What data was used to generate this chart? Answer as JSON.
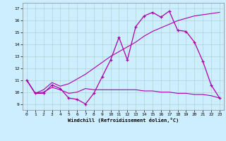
{
  "xlabel": "Windchill (Refroidissement éolien,°C)",
  "background_color": "#cceeff",
  "xlim": [
    -0.5,
    23.5
  ],
  "ylim": [
    8.5,
    17.5
  ],
  "yticks": [
    9,
    10,
    11,
    12,
    13,
    14,
    15,
    16,
    17
  ],
  "xticks": [
    0,
    1,
    2,
    3,
    4,
    5,
    6,
    7,
    8,
    9,
    10,
    11,
    12,
    13,
    14,
    15,
    16,
    17,
    18,
    19,
    20,
    21,
    22,
    23
  ],
  "line_color": "#aa00aa",
  "line1_x": [
    0,
    1,
    2,
    3,
    4,
    5,
    6,
    7,
    8,
    9,
    10,
    11,
    12,
    13,
    14,
    15,
    16,
    17,
    18,
    19,
    20,
    21,
    22,
    23
  ],
  "line1_y": [
    11.0,
    9.9,
    9.9,
    10.6,
    10.3,
    9.5,
    9.4,
    9.0,
    9.9,
    11.3,
    12.7,
    14.6,
    12.7,
    15.5,
    16.4,
    16.7,
    16.3,
    16.8,
    15.2,
    15.1,
    14.2,
    12.6,
    10.6,
    9.5
  ],
  "line2_x": [
    0,
    1,
    2,
    3,
    4,
    5,
    6,
    7,
    8,
    9,
    10,
    11,
    12,
    13,
    14,
    15,
    16,
    17,
    18,
    19,
    20,
    21,
    22,
    23
  ],
  "line2_y": [
    11.0,
    9.9,
    10.0,
    10.4,
    10.2,
    9.9,
    10.0,
    10.3,
    10.2,
    10.2,
    10.2,
    10.2,
    10.2,
    10.2,
    10.1,
    10.1,
    10.0,
    10.0,
    9.9,
    9.9,
    9.8,
    9.8,
    9.7,
    9.5
  ],
  "line3_x": [
    0,
    1,
    2,
    3,
    4,
    5,
    6,
    7,
    8,
    9,
    10,
    11,
    12,
    13,
    14,
    15,
    16,
    17,
    18,
    19,
    20,
    21,
    22,
    23
  ],
  "line3_y": [
    11.0,
    9.9,
    10.2,
    10.8,
    10.5,
    10.7,
    11.1,
    11.5,
    12.0,
    12.5,
    13.0,
    13.4,
    13.8,
    14.2,
    14.7,
    15.1,
    15.4,
    15.7,
    16.0,
    16.2,
    16.4,
    16.5,
    16.6,
    16.7
  ]
}
